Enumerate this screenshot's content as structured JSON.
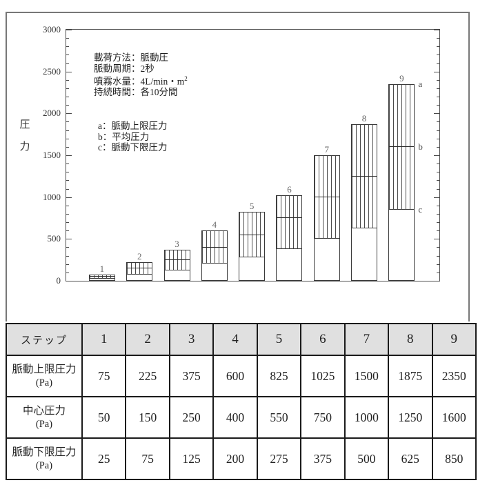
{
  "figure": {
    "ylabel": "圧力",
    "conditions": [
      {
        "text": "載荷方法：脈動圧",
        "sup": ""
      },
      {
        "text": "脈動周期：2秒",
        "sup": ""
      },
      {
        "text": "噴霧水量：4L/min・m",
        "sup": "2"
      },
      {
        "text": "持続時間：各10分間",
        "sup": ""
      }
    ],
    "legend_lines": [
      "a：脈動上限圧力",
      "b：平均圧力",
      "c：脈動下限圧力"
    ],
    "side_labels": [
      "a",
      "b",
      "c"
    ]
  },
  "chart_data": {
    "type": "bar",
    "title": "",
    "xlabel": "",
    "ylabel": "圧力",
    "ylim": [
      0,
      3000
    ],
    "ytick_major": 500,
    "ytick_minor": 100,
    "grid": false,
    "legend_position": "inside upper-left",
    "categories": [
      "1",
      "2",
      "3",
      "4",
      "5",
      "6",
      "7",
      "8",
      "9"
    ],
    "series": [
      {
        "name": "脈動上限圧力(Pa)",
        "role": "upper_limit",
        "values": [
          75,
          225,
          375,
          600,
          825,
          1025,
          1500,
          1875,
          2350
        ]
      },
      {
        "name": "中心圧力(Pa)",
        "role": "center",
        "values": [
          50,
          150,
          250,
          400,
          550,
          750,
          1000,
          1250,
          1600
        ]
      },
      {
        "name": "脈動下限圧力(Pa)",
        "role": "lower_limit",
        "values": [
          25,
          75,
          125,
          200,
          275,
          375,
          500,
          625,
          850
        ]
      }
    ],
    "annotations": [
      "載荷方法：脈動圧",
      "脈動周期：2秒",
      "噴霧水量：4L/min・m2",
      "持続時間：各10分間",
      "a：脈動上限圧力",
      "b：平均圧力",
      "c：脈動下限圧力"
    ]
  },
  "table": {
    "header": [
      "ステップ",
      "1",
      "2",
      "3",
      "4",
      "5",
      "6",
      "7",
      "8",
      "9"
    ],
    "rows": [
      {
        "label": "脈動上限圧力",
        "unit": "(Pa)",
        "values": [
          "75",
          "225",
          "375",
          "600",
          "825",
          "1025",
          "1500",
          "1875",
          "2350"
        ]
      },
      {
        "label": "中心圧力",
        "unit": "(Pa)",
        "values": [
          "50",
          "150",
          "250",
          "400",
          "550",
          "750",
          "1000",
          "1250",
          "1600"
        ]
      },
      {
        "label": "脈動下限圧力",
        "unit": "(Pa)",
        "values": [
          "25",
          "75",
          "125",
          "200",
          "275",
          "375",
          "500",
          "625",
          "850"
        ]
      }
    ]
  },
  "colors": {
    "header_bg": "#e0e0e0",
    "table_border": "#1a1a1a",
    "panel_border": "#777777",
    "axis": "#4a4a4a",
    "text": "#222222",
    "bar_label": "#666666"
  }
}
